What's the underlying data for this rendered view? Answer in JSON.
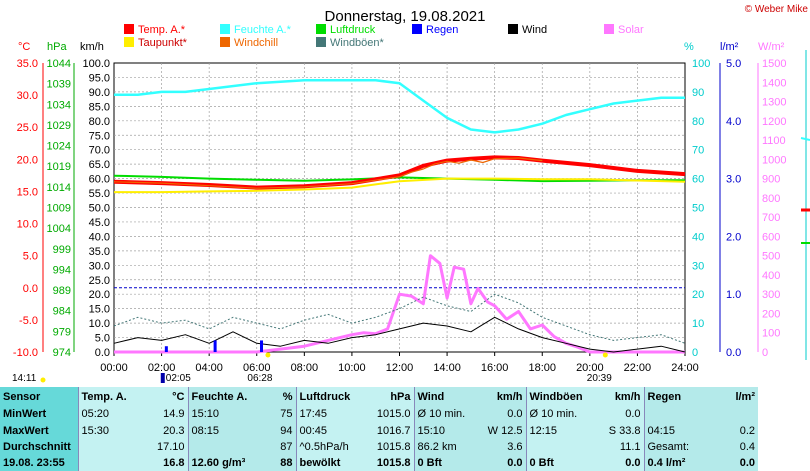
{
  "title": "Donnerstag, 19.08.2021",
  "copyright": "© Weber Mike",
  "axes": {
    "temp_unit": "°C",
    "hpa_unit": "hPa",
    "kmh_unit": "km/h",
    "pct_unit": "%",
    "rain_unit": "l/m²",
    "solar_unit": "W/m²",
    "temp_ticks": [
      "35.0",
      "30.0",
      "25.0",
      "20.0",
      "15.0",
      "10.0",
      "5.0",
      "0.0",
      "-5.0",
      "-10.0"
    ],
    "hpa_ticks": [
      "1044",
      "1039",
      "1034",
      "1029",
      "1024",
      "1019",
      "1014",
      "1009",
      "1004",
      "999",
      "994",
      "989",
      "984",
      "979",
      "974"
    ],
    "kmh_ticks": [
      "100.0",
      "95.0",
      "90.0",
      "85.0",
      "80.0",
      "75.0",
      "70.0",
      "65.0",
      "60.0",
      "55.0",
      "50.0",
      "45.0",
      "40.0",
      "35.0",
      "30.0",
      "25.0",
      "20.0",
      "15.0",
      "10.0",
      "5.0",
      "0.0"
    ],
    "pct_ticks": [
      "100",
      "90",
      "80",
      "70",
      "60",
      "50",
      "40",
      "30",
      "20",
      "10",
      "0"
    ],
    "rain_ticks": [
      "5.0",
      "4.0",
      "3.0",
      "2.0",
      "1.0",
      "0.0"
    ],
    "solar_ticks": [
      "1500",
      "1400",
      "1300",
      "1200",
      "1100",
      "1000",
      "900",
      "800",
      "700",
      "600",
      "500",
      "400",
      "300",
      "200",
      "100",
      "0"
    ],
    "time_ticks": [
      "00:00",
      "02:00",
      "04:00",
      "06:00",
      "08:00",
      "10:00",
      "12:00",
      "14:00",
      "16:00",
      "18:00",
      "20:00",
      "22:00",
      "24:00"
    ]
  },
  "sun_marks": {
    "sunrise": "06:28",
    "sunset": "20:39",
    "left": "14:11",
    "moon": "02:05"
  },
  "legend": [
    {
      "label": "Temp. A.*",
      "color": "#ff0000"
    },
    {
      "label": "Feuchte A.*",
      "color": "#33ffff"
    },
    {
      "label": "Luftdruck",
      "color": "#00dd00"
    },
    {
      "label": "Regen",
      "color": "#0000ff"
    },
    {
      "label": "Wind",
      "color": "#000000"
    },
    {
      "label": "Solar",
      "color": "#ff77ff"
    },
    {
      "label": "Taupunkt*",
      "color": "#ffee00"
    },
    {
      "label": "Windchill",
      "color": "#ee6600"
    },
    {
      "label": "Windböen*",
      "color": "#447777"
    }
  ],
  "chart_data": {
    "type": "line",
    "title": "Donnerstag, 19.08.2021",
    "x_unit": "hours",
    "xlim": [
      0,
      24
    ],
    "series": [
      {
        "name": "Temp. A.*",
        "unit": "°C",
        "color": "#ff0000",
        "x": [
          0,
          2,
          4,
          6,
          8,
          10,
          12,
          13,
          14,
          15,
          16,
          17,
          18,
          20,
          22,
          24
        ],
        "y": [
          16.5,
          16.3,
          16.0,
          15.6,
          15.8,
          16.3,
          17.5,
          19.0,
          19.8,
          20.1,
          20.3,
          20.2,
          19.8,
          19.1,
          18.2,
          17.7
        ]
      },
      {
        "name": "Taupunkt*",
        "unit": "°C",
        "color": "#ffee00",
        "x": [
          0,
          2,
          4,
          6,
          8,
          10,
          12,
          14,
          16,
          18,
          20,
          22,
          24
        ],
        "y": [
          14.9,
          14.9,
          15.0,
          15.1,
          15.3,
          15.6,
          16.6,
          17.0,
          17.0,
          16.9,
          16.9,
          16.7,
          16.5
        ]
      },
      {
        "name": "Windchill",
        "unit": "°C",
        "color": "#ee6600",
        "x": [
          0,
          2,
          3,
          4,
          6,
          8,
          10,
          12,
          12.5,
          13,
          13.5,
          14,
          14.5,
          15,
          15.5,
          16,
          17,
          18
        ],
        "y": [
          16.5,
          16.3,
          16.1,
          15.9,
          15.5,
          15.7,
          16.2,
          17.3,
          18.0,
          18.5,
          19.3,
          19.7,
          19.4,
          19.9,
          19.5,
          20.1,
          20.2,
          19.8
        ]
      },
      {
        "name": "Feuchte A.*",
        "unit": "%",
        "color": "#33ffff",
        "x": [
          0,
          1,
          2,
          3,
          4,
          6,
          8,
          10,
          11,
          12,
          13,
          14,
          15,
          16,
          17,
          18,
          19,
          20,
          21,
          22,
          23,
          24
        ],
        "y": [
          89,
          89,
          90,
          90,
          91,
          93,
          94,
          94,
          94,
          93,
          87,
          81,
          77,
          76,
          77,
          79,
          82,
          84,
          86,
          87,
          88,
          88
        ]
      },
      {
        "name": "Luftdruck",
        "unit": "hPa",
        "color": "#00dd00",
        "x": [
          0,
          2,
          4,
          6,
          8,
          10,
          12,
          14,
          16,
          18,
          20,
          22,
          24
        ],
        "y": [
          1016.7,
          1016.4,
          1016.0,
          1015.7,
          1015.5,
          1015.8,
          1016.3,
          1016.0,
          1015.7,
          1015.4,
          1015.5,
          1015.6,
          1015.6
        ]
      },
      {
        "name": "Wind",
        "unit": "km/h",
        "color": "#000000",
        "x": [
          0,
          1,
          2,
          3,
          4,
          5,
          6,
          7,
          8,
          9,
          10,
          11,
          12,
          13,
          14,
          15,
          16,
          17,
          18,
          19,
          20,
          21,
          22,
          23,
          24
        ],
        "y": [
          3,
          5,
          4,
          6,
          3,
          7,
          3,
          2,
          4,
          3,
          5,
          6,
          8,
          10,
          9,
          7,
          12,
          8,
          5,
          3,
          1,
          0,
          1,
          2,
          0
        ]
      },
      {
        "name": "Windböen*",
        "unit": "km/h",
        "color": "#447777",
        "x": [
          0,
          1,
          2,
          3,
          4,
          5,
          6,
          7,
          8,
          9,
          10,
          11,
          12,
          13,
          14,
          15,
          16,
          17,
          18,
          19,
          20,
          21,
          22,
          23,
          24
        ],
        "y": [
          9,
          12,
          10,
          11,
          8,
          12,
          10,
          8,
          11,
          13,
          10,
          12,
          15,
          19,
          16,
          14,
          20,
          17,
          12,
          9,
          6,
          4,
          5,
          6,
          3
        ]
      },
      {
        "name": "Solar",
        "unit": "W/m²",
        "color": "#ff77ff",
        "x": [
          0,
          6,
          7,
          8,
          9,
          10,
          10.5,
          11,
          11.5,
          12,
          12.5,
          13,
          13.3,
          13.7,
          14,
          14.3,
          14.7,
          15,
          15.3,
          15.7,
          16,
          16.5,
          17,
          17.5,
          18,
          18.5,
          19,
          19.5,
          20,
          24
        ],
        "y": [
          0,
          0,
          15,
          30,
          60,
          90,
          100,
          95,
          120,
          300,
          290,
          250,
          500,
          460,
          280,
          440,
          430,
          250,
          330,
          260,
          240,
          170,
          210,
          120,
          140,
          80,
          45,
          25,
          0,
          0
        ]
      },
      {
        "name": "Regen",
        "unit": "l/m²",
        "color": "#0000ff",
        "x": [
          2.2,
          4.25,
          6.2
        ],
        "y": [
          0.1,
          0.2,
          0.2
        ]
      }
    ]
  },
  "stats": {
    "headers": [
      "Sensor",
      "Temp. A.",
      "°C",
      "Feuchte A.",
      "%",
      "Luftdruck",
      "hPa",
      "Wind",
      "km/h",
      "Windböen",
      "km/h",
      "Regen",
      "l/m²"
    ],
    "rows": [
      [
        "MinWert",
        "05:20",
        "14.9",
        "15:10",
        "75",
        "17:45",
        "1015.0",
        "Ø 10 min.",
        "0.0",
        "Ø 10 min.",
        "0.0",
        "",
        ""
      ],
      [
        "MaxWert",
        "15:30",
        "20.3",
        "08:15",
        "94",
        "00:45",
        "1016.7",
        "15:10",
        "W 12.5",
        "12:15",
        "S 33.8",
        "04:15",
        "0.2"
      ],
      [
        "Durchschnitt",
        "",
        "17.10",
        "",
        "87",
        "^0.5hPa/h",
        "1015.8",
        "86.2 km",
        "3.6",
        "",
        "11.1",
        "Gesamt:",
        "0.4"
      ],
      [
        "19.08. 23:55",
        "",
        "16.8",
        "12.60 g/m³",
        "88",
        "bewölkt",
        "1015.8",
        "0 Bft",
        "0.0",
        "0 Bft",
        "0.0",
        "0.4 l/m²",
        "0.0"
      ]
    ]
  }
}
